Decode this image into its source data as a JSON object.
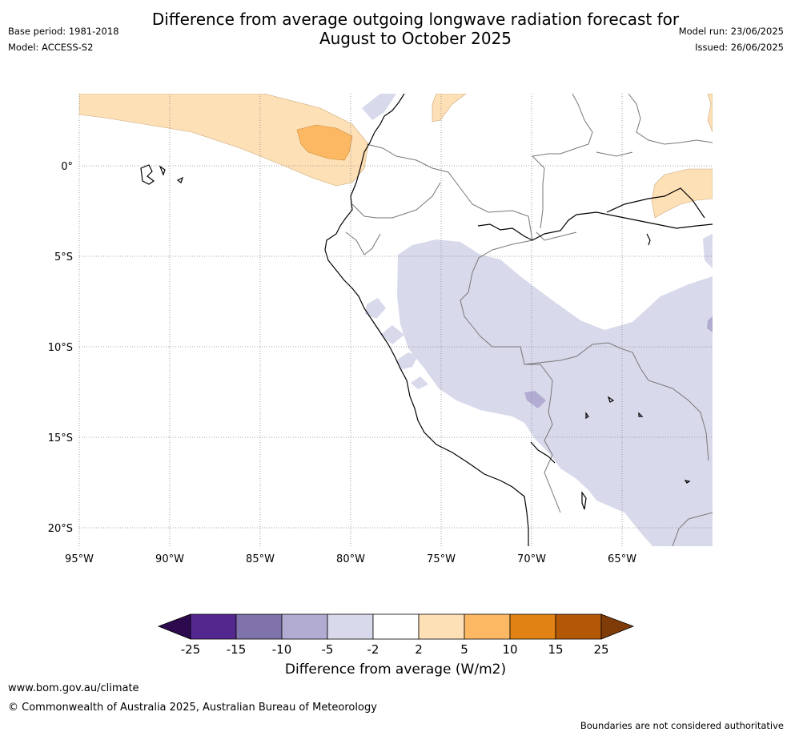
{
  "title": {
    "line1": "Difference from average outgoing longwave radiation forecast for",
    "line2": "August to October 2025"
  },
  "meta": {
    "base_period": "Base period: 1981-2018",
    "model": "Model: ACCESS-S2",
    "model_run": "Model run: 23/06/2025",
    "issued": "Issued: 26/06/2025"
  },
  "map": {
    "lon_ticks": [
      "95°W",
      "90°W",
      "85°W",
      "80°W",
      "75°W",
      "70°W",
      "65°W"
    ],
    "lat_ticks": [
      "0°",
      "5°S",
      "10°S",
      "15°S",
      "20°S"
    ],
    "gridlines": true,
    "region": "Ecuador, Peru, Bolivia, western Brazil"
  },
  "legend": {
    "title": "Difference from average (W/m2)",
    "ticks": [
      "-25",
      "-15",
      "-10",
      "-5",
      "-2",
      "2",
      "5",
      "10",
      "15",
      "25"
    ],
    "colors": [
      "#2d0a4e",
      "#54278f",
      "#8073ac",
      "#b2abd2",
      "#d8daeb",
      "#ffffff",
      "#fee0b6",
      "#fdb863",
      "#e08214",
      "#b35806",
      "#7f3b08"
    ]
  },
  "footer": {
    "url": "www.bom.gov.au/climate",
    "copyright": "© Commonwealth of Australia 2025, Australian Bureau of Meteorology",
    "note": "Boundaries are not considered authoritative"
  }
}
